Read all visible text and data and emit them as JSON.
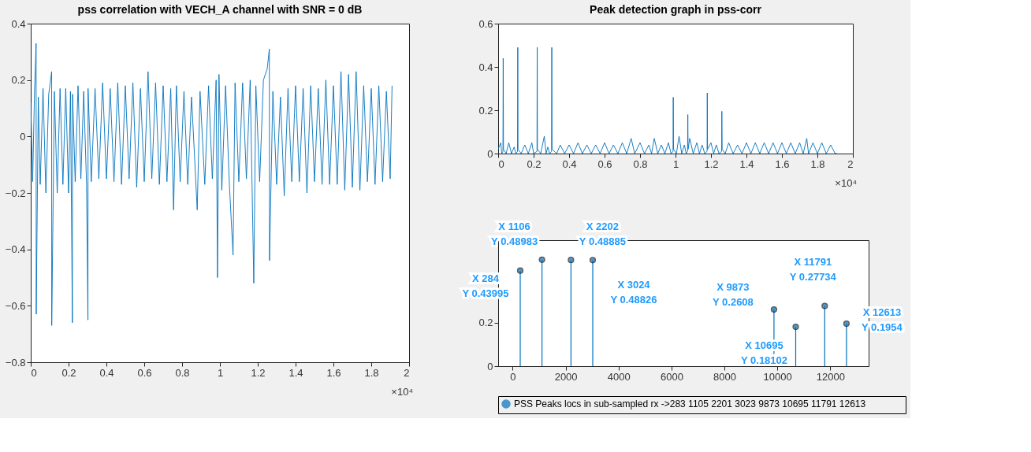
{
  "chart_data": [
    {
      "type": "line",
      "title": "pss correlation with VECH_A channel with SNR = 0 dB",
      "grid": false,
      "legend": false,
      "xlim": [
        0,
        2
      ],
      "xticks": [
        0,
        0.2,
        0.4,
        0.6,
        0.8,
        1,
        1.2,
        1.4,
        1.6,
        1.8,
        2
      ],
      "ylim": [
        -0.8,
        0.4
      ],
      "yticks": [
        -0.8,
        -0.6,
        -0.4,
        -0.2,
        0,
        0.2,
        0.4
      ],
      "annotations": [
        "×10⁴"
      ],
      "series": [
        {
          "color": "#0072bd",
          "x": [
            0,
            0.01,
            0.02,
            0.0284,
            0.029,
            0.04,
            0.05,
            0.065,
            0.08,
            0.095,
            0.1106,
            0.111,
            0.125,
            0.14,
            0.155,
            0.17,
            0.185,
            0.2,
            0.21,
            0.2202,
            0.221,
            0.235,
            0.25,
            0.265,
            0.28,
            0.295,
            0.3024,
            0.303,
            0.32,
            0.34,
            0.36,
            0.38,
            0.4,
            0.42,
            0.44,
            0.46,
            0.48,
            0.5,
            0.52,
            0.54,
            0.56,
            0.58,
            0.6,
            0.62,
            0.64,
            0.66,
            0.68,
            0.7,
            0.72,
            0.74,
            0.755,
            0.77,
            0.79,
            0.81,
            0.83,
            0.85,
            0.88,
            0.895,
            0.92,
            0.94,
            0.96,
            0.98,
            0.9873,
            0.995,
            1.01,
            1.03,
            1.05,
            1.0695,
            1.08,
            1.1,
            1.12,
            1.14,
            1.16,
            1.1791,
            1.19,
            1.21,
            1.23,
            1.25,
            1.2613,
            1.262,
            1.28,
            1.3,
            1.32,
            1.34,
            1.36,
            1.38,
            1.4,
            1.42,
            1.44,
            1.46,
            1.48,
            1.5,
            1.52,
            1.54,
            1.56,
            1.58,
            1.6,
            1.62,
            1.64,
            1.66,
            1.68,
            1.7,
            1.72,
            1.74,
            1.76,
            1.78,
            1.8,
            1.82,
            1.84,
            1.86,
            1.88,
            1.9,
            1.91
          ],
          "values": [
            0.12,
            -0.16,
            0.16,
            0.33,
            -0.63,
            0.14,
            -0.17,
            0.17,
            -0.2,
            0.15,
            0.23,
            -0.67,
            0.16,
            -0.2,
            0.17,
            -0.17,
            0.17,
            -0.2,
            0.16,
            -0.66,
            0.15,
            -0.16,
            0.18,
            -0.15,
            0.16,
            -0.17,
            -0.65,
            0.17,
            -0.16,
            0.17,
            -0.15,
            0.19,
            -0.15,
            0.17,
            -0.16,
            0.19,
            -0.17,
            0.18,
            -0.15,
            0.19,
            -0.18,
            0.17,
            -0.16,
            0.23,
            -0.15,
            0.19,
            -0.17,
            0.18,
            -0.16,
            0.17,
            -0.26,
            0.18,
            -0.16,
            0.16,
            -0.17,
            0.14,
            -0.26,
            0.16,
            -0.17,
            0.18,
            -0.15,
            0.2,
            -0.5,
            0.22,
            -0.19,
            0.18,
            -0.17,
            -0.42,
            0.19,
            -0.16,
            0.19,
            -0.15,
            0.2,
            -0.52,
            0.18,
            -0.16,
            0.2,
            0.24,
            0.31,
            -0.44,
            0.16,
            -0.17,
            0.14,
            -0.21,
            0.17,
            -0.16,
            0.18,
            -0.16,
            0.17,
            -0.2,
            0.18,
            -0.16,
            0.17,
            -0.17,
            0.2,
            -0.17,
            0.18,
            -0.17,
            0.23,
            -0.19,
            0.22,
            -0.18,
            0.23,
            -0.19,
            0.18,
            -0.16,
            0.17,
            -0.17,
            0.18,
            -0.16,
            0.16,
            -0.15,
            0.18
          ]
        }
      ]
    },
    {
      "type": "line",
      "title": "Peak detection graph in pss-corr",
      "grid": false,
      "legend": false,
      "xlim": [
        0,
        2
      ],
      "xticks": [
        0,
        0.2,
        0.4,
        0.6,
        0.8,
        1,
        1.2,
        1.4,
        1.6,
        1.8,
        2
      ],
      "ylim": [
        0,
        0.6
      ],
      "yticks": [
        0,
        0.2,
        0.4,
        0.6
      ],
      "annotations": [
        "×10⁴"
      ],
      "series": [
        {
          "color": "#0072bd",
          "x": [
            0,
            0.015,
            0.02,
            0.027,
            0.0284,
            0.03,
            0.045,
            0.06,
            0.075,
            0.09,
            0.1,
            0.109,
            0.1106,
            0.112,
            0.13,
            0.15,
            0.17,
            0.19,
            0.2,
            0.219,
            0.2202,
            0.2215,
            0.24,
            0.26,
            0.27,
            0.28,
            0.29,
            0.301,
            0.3024,
            0.304,
            0.33,
            0.35,
            0.375,
            0.4,
            0.425,
            0.45,
            0.475,
            0.5,
            0.525,
            0.55,
            0.575,
            0.6,
            0.625,
            0.65,
            0.675,
            0.7,
            0.725,
            0.75,
            0.77,
            0.8,
            0.825,
            0.85,
            0.865,
            0.88,
            0.9,
            0.92,
            0.94,
            0.96,
            0.975,
            0.986,
            0.9873,
            0.989,
            1.005,
            1.02,
            1.035,
            1.05,
            1.06,
            1.068,
            1.0695,
            1.071,
            1.08,
            1.1,
            1.12,
            1.135,
            1.15,
            1.165,
            1.178,
            1.1791,
            1.1805,
            1.2,
            1.215,
            1.23,
            1.245,
            1.26,
            1.2613,
            1.263,
            1.28,
            1.3,
            1.325,
            1.35,
            1.375,
            1.4,
            1.425,
            1.45,
            1.475,
            1.5,
            1.525,
            1.55,
            1.575,
            1.6,
            1.625,
            1.65,
            1.675,
            1.7,
            1.72,
            1.74,
            1.75,
            1.775,
            1.8,
            1.825,
            1.85,
            1.875,
            1.9,
            1.91
          ],
          "values": [
            0.02,
            0.05,
            0.0,
            0.01,
            0.44,
            0.02,
            0.0,
            0.05,
            0.0,
            0.03,
            0.0,
            0.01,
            0.49,
            0.02,
            0.0,
            0.04,
            0.0,
            0.05,
            0.0,
            0.01,
            0.49,
            0.02,
            0.0,
            0.08,
            0.0,
            0.03,
            0.0,
            0.01,
            0.49,
            0.02,
            0.0,
            0.04,
            0.0,
            0.04,
            0.0,
            0.05,
            0.0,
            0.04,
            0.0,
            0.04,
            0.0,
            0.05,
            0.0,
            0.04,
            0.0,
            0.05,
            0.0,
            0.07,
            0.0,
            0.05,
            0.0,
            0.04,
            0.0,
            0.07,
            0.0,
            0.04,
            0.0,
            0.05,
            0.0,
            0.01,
            0.26,
            0.02,
            0.0,
            0.08,
            0.0,
            0.04,
            0.0,
            0.01,
            0.18,
            0.02,
            0.07,
            0.0,
            0.05,
            0.0,
            0.04,
            0.0,
            0.01,
            0.28,
            0.02,
            0.05,
            0.0,
            0.04,
            0.0,
            0.01,
            0.195,
            0.02,
            0.0,
            0.05,
            0.0,
            0.04,
            0.0,
            0.05,
            0.0,
            0.05,
            0.0,
            0.05,
            0.0,
            0.05,
            0.0,
            0.05,
            0.0,
            0.05,
            0.0,
            0.05,
            0.0,
            0.07,
            0.0,
            0.05,
            0.0,
            0.05,
            0.0,
            0.04,
            0.0,
            0.0
          ]
        }
      ]
    },
    {
      "type": "lollipop",
      "grid": false,
      "legend": "bottom",
      "marker": "circle",
      "xlim": [
        -550,
        13450
      ],
      "xticks": [
        0,
        2000,
        4000,
        6000,
        8000,
        10000,
        12000
      ],
      "ylim": [
        0,
        0.58
      ],
      "yticks": [
        0,
        0.2,
        {
          "value": 0.4,
          "label": null
        }
      ],
      "annotations": [
        {
          "text": "X 284\nY 0.43995",
          "x": 284,
          "y": 0.43995
        },
        {
          "text": "X 1106\nY 0.48983",
          "x": 1106,
          "y": 0.48983
        },
        {
          "text": "X 2202\nY 0.48885",
          "x": 2202,
          "y": 0.48885
        },
        {
          "text": "X 3024\nY 0.48826",
          "x": 3024,
          "y": 0.48826
        },
        {
          "text": "X 9873\nY 0.2608",
          "x": 9873,
          "y": 0.2608
        },
        {
          "text": "X 10695\nY 0.18102",
          "x": 10695,
          "y": 0.18102
        },
        {
          "text": "X 11791\nY 0.27734",
          "x": 11791,
          "y": 0.27734
        },
        {
          "text": "X 12613\nY 0.1954",
          "x": 12613,
          "y": 0.1954
        }
      ],
      "series": [
        {
          "name": "PSS Peaks locs in sub-sampled rx ->283   1105   2201   3023   9873   10695   11791   12613",
          "color": "#0072bd",
          "x": [
            284,
            1106,
            2202,
            3024,
            9873,
            10695,
            11791,
            12613
          ],
          "values": [
            0.43995,
            0.48983,
            0.48885,
            0.48826,
            0.2608,
            0.18102,
            0.27734,
            0.1954
          ]
        }
      ]
    }
  ]
}
